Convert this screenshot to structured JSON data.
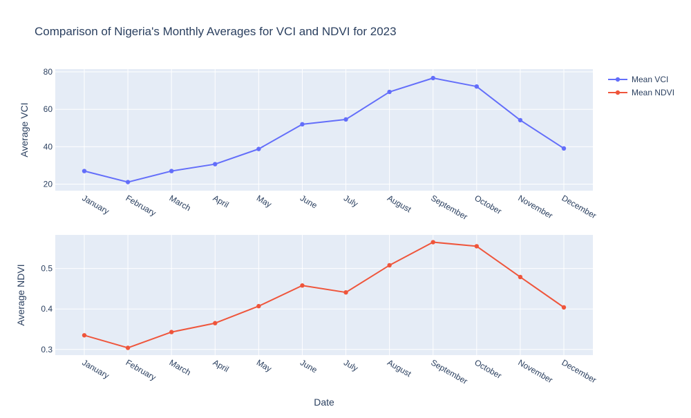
{
  "chart_data": {
    "type": "line",
    "title": "Comparison of Nigeria's Monthly Averages for VCI and NDVI for 2023",
    "xlabel": "Date",
    "categories": [
      "January",
      "February",
      "March",
      "April",
      "May",
      "June",
      "July",
      "August",
      "September",
      "October",
      "November",
      "December"
    ],
    "legend_placement": "top-right",
    "grid": true,
    "plot_background": "#e5ecf6",
    "series": [
      {
        "name": "Mean VCI",
        "color": "#636efa",
        "ylabel": "Average VCI",
        "values": [
          27.0,
          21.1,
          27.0,
          30.7,
          38.8,
          52.0,
          54.6,
          69.3,
          76.7,
          72.2,
          54.2,
          39.1
        ],
        "ylim": [
          16.5,
          81.5
        ],
        "yticks": [
          20,
          40,
          60,
          80
        ]
      },
      {
        "name": "Mean NDVI",
        "color": "#ef553b",
        "ylabel": "Average NDVI",
        "values": [
          0.335,
          0.304,
          0.343,
          0.365,
          0.407,
          0.458,
          0.441,
          0.508,
          0.565,
          0.555,
          0.479,
          0.404
        ],
        "ylim": [
          0.286,
          0.583
        ],
        "yticks": [
          0.3,
          0.4,
          0.5
        ],
        "ytick_labels": [
          "0.3",
          "0.4",
          "0.5"
        ]
      }
    ]
  }
}
